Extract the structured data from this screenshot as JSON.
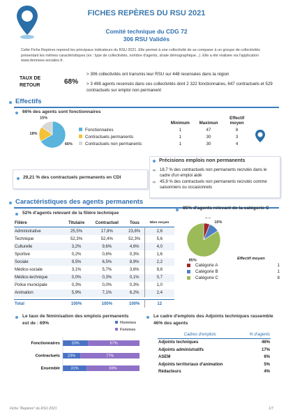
{
  "header": {
    "title": "FICHES REPÈRES DU RSU 2021",
    "subtitle": "Comité technique du CDG 72",
    "subtitle2": "306 RSU Validés"
  },
  "intro": "Cette Fiche Repères reprend les principaux indicateurs du RSU 2021. Elle permet à une collectivité de se comparer à un groupe de collectivités présentant les mêmes caractéristiques (ex : type de collectivités, nombre d'agents, strate démographique...). Elle a été réalisée via l'application www.donnees-sociales.fr.",
  "return_rate": {
    "label": "TAUX DE RETOUR",
    "value": "68%",
    "notes": [
      "> 306 collectivités ont transmis leur RSU sur 448 recensées dans la région",
      "> 3 498 agents recensés dans ces collectivités dont 2 322 fonctionnaires, 647 contractuels et 529  contractuels sur emploi non permanent"
    ]
  },
  "effectifs": {
    "heading": "Effectifs",
    "summary": "66% des agents sont fonctionnaires",
    "pie": {
      "values": [
        66,
        18,
        15
      ],
      "value_labels": [
        "66%",
        "18%",
        "15%"
      ],
      "colors": [
        "#5ab4dc",
        "#f3c13a",
        "#d8d8d8"
      ]
    },
    "table": {
      "columns": [
        "Minimum",
        "Maximun",
        "Effectif moyen"
      ],
      "rows": [
        [
          "Fonctionnaires",
          "1",
          "47",
          "8"
        ],
        [
          "Contractuels permanents",
          "1",
          "30",
          "3"
        ],
        [
          "Contractuels non permanents",
          "1",
          "30",
          "4"
        ]
      ]
    }
  },
  "cdi": "29,21 % des contractuels permanents en CDI",
  "non_permanent": {
    "heading": "Précisions emplois non permanents",
    "items": [
      "18,7 % des contractuels non permanents recrutés dans le cadre d'un emploi aidé",
      "45,9 % des contractuels non permanents recrutés comme saisonniers ou occasionnels"
    ]
  },
  "permanents": {
    "heading": "Caractéristiques des agents permanents",
    "filiere": {
      "summary": "52% d'agents relevant de la filière technique",
      "columns": [
        "Filière",
        "Titulaire",
        "Contractuel",
        "Tous",
        "Nbre moyen"
      ],
      "rows": [
        [
          "Administrative",
          "25,5%",
          "17,8%",
          "23,8%",
          "2,6"
        ],
        [
          "Technique",
          "52,3%",
          "52,4%",
          "52,3%",
          "5,6"
        ],
        [
          "Culturelle",
          "3,2%",
          "9,6%",
          "4,6%",
          "4,0"
        ],
        [
          "Sportive",
          "0,2%",
          "0,6%",
          "0,3%",
          "1,6"
        ],
        [
          "Sociale",
          "9,5%",
          "6,5%",
          "8,9%",
          "2,2"
        ],
        [
          "Médico-sociale",
          "3,1%",
          "5,7%",
          "3,6%",
          "9,8"
        ],
        [
          "Médico-technique",
          "0,0%",
          "0,3%",
          "0,1%",
          "0,7"
        ],
        [
          "Police municipale",
          "0,3%",
          "0,0%",
          "0,3%",
          "1,0"
        ],
        [
          "Animation",
          "5,9%",
          "7,1%",
          "6,2%",
          "2,4"
        ]
      ],
      "total": [
        "Total",
        "100%",
        "100%",
        "100%",
        "12"
      ]
    },
    "categorie": {
      "summary": "85% d'agents relevant de la catégorie C",
      "pie": {
        "values": [
          6,
          10,
          85
        ],
        "value_labels": [
          "6%",
          "10%",
          "85%"
        ],
        "colors": [
          "#a0282c",
          "#4f7fc4",
          "#9bbb59"
        ]
      },
      "legend_title": "Effectif moyen",
      "legend": [
        [
          "Catégorie A",
          "1"
        ],
        [
          "Catégorie B",
          "1"
        ],
        [
          "Catégorie C",
          "8"
        ]
      ]
    }
  },
  "feminisation": {
    "summary": "Le taux de féminisation des emplois permanents est de : 69%",
    "categories": [
      "Fonctionnaires",
      "Contractuels",
      "Ensemble"
    ],
    "series": [
      {
        "name": "Hommes",
        "color": "#4a72c4",
        "values": [
          33,
          23,
          31
        ],
        "value_labels": [
          "33%",
          "23%",
          "31%"
        ]
      },
      {
        "name": "Femmes",
        "color": "#8f72c8",
        "values": [
          67,
          77,
          69
        ],
        "value_labels": [
          "67%",
          "77%",
          "69%"
        ]
      }
    ]
  },
  "cadres": {
    "summary": "Le cadre d'emplois des Adjoints techniques rassemble 46% des agents",
    "columns": [
      "Cadres d'emplois",
      "% d'agents"
    ],
    "rows": [
      [
        "Adjoints techniques",
        "46%"
      ],
      [
        "Adjoints administratifs",
        "17%"
      ],
      [
        "ASEM",
        "6%"
      ],
      [
        "Adjoints territoriaux d'animation",
        "5%"
      ],
      [
        "Rédacteurs",
        "4%"
      ]
    ]
  },
  "footer": {
    "left": "Fiche \"Repères\" du RSU 2021",
    "page": "1/7"
  }
}
